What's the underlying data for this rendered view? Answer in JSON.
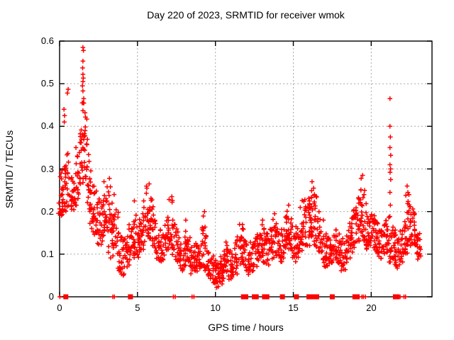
{
  "chart_data": {
    "type": "scatter",
    "title": "Day 220 of 2023, SRMTID for receiver wmok",
    "xlabel": "GPS time / hours",
    "ylabel": "SRMTID / TECUs",
    "xlim": [
      0,
      23.9
    ],
    "ylim": [
      0,
      0.6
    ],
    "xtick_values": [
      0,
      5,
      10,
      15,
      20
    ],
    "xtick_labels": [
      "0",
      "5",
      "10",
      "15",
      "20"
    ],
    "ytick_values": [
      0,
      0.1,
      0.2,
      0.3,
      0.4,
      0.5,
      0.6
    ],
    "ytick_labels": [
      "0",
      "0.1",
      "0.2",
      "0.3",
      "0.4",
      "0.5",
      "0.6"
    ],
    "grid": true,
    "legend": "none",
    "marker": "plus",
    "series_color": "#ff0000",
    "grid_color": "#a8a8a8",
    "density_bands": [
      [
        0.05,
        0.18,
        0.28,
        10
      ],
      [
        0.15,
        0.19,
        0.31,
        12
      ],
      [
        0.3,
        0.2,
        0.33,
        12
      ],
      [
        0.45,
        0.27,
        0.34,
        9
      ],
      [
        0.6,
        0.21,
        0.3,
        9
      ],
      [
        0.75,
        0.2,
        0.28,
        10
      ],
      [
        0.9,
        0.19,
        0.27,
        10
      ],
      [
        1.05,
        0.21,
        0.3,
        10
      ],
      [
        1.2,
        0.23,
        0.34,
        11
      ],
      [
        1.35,
        0.26,
        0.42,
        13
      ],
      [
        1.5,
        0.3,
        0.47,
        15
      ],
      [
        1.65,
        0.28,
        0.43,
        14
      ],
      [
        1.8,
        0.24,
        0.37,
        12
      ],
      [
        1.95,
        0.2,
        0.32,
        12
      ],
      [
        2.1,
        0.17,
        0.28,
        12
      ],
      [
        2.25,
        0.15,
        0.25,
        11
      ],
      [
        2.4,
        0.13,
        0.23,
        10
      ],
      [
        2.55,
        0.12,
        0.21,
        10
      ],
      [
        2.7,
        0.13,
        0.23,
        10
      ],
      [
        2.85,
        0.14,
        0.26,
        12
      ],
      [
        3.0,
        0.13,
        0.25,
        11
      ],
      [
        3.15,
        0.11,
        0.27,
        11
      ],
      [
        3.3,
        0.1,
        0.22,
        10
      ],
      [
        3.45,
        0.09,
        0.19,
        10
      ],
      [
        3.6,
        0.1,
        0.21,
        10
      ],
      [
        3.75,
        0.08,
        0.18,
        10
      ],
      [
        3.9,
        0.06,
        0.15,
        10
      ],
      [
        4.05,
        0.05,
        0.13,
        10
      ],
      [
        4.2,
        0.06,
        0.14,
        10
      ],
      [
        4.35,
        0.07,
        0.16,
        10
      ],
      [
        4.5,
        0.08,
        0.17,
        10
      ],
      [
        4.65,
        0.09,
        0.19,
        10
      ],
      [
        4.8,
        0.1,
        0.22,
        11
      ],
      [
        4.95,
        0.09,
        0.18,
        10
      ],
      [
        5.1,
        0.09,
        0.17,
        10
      ],
      [
        5.25,
        0.1,
        0.19,
        10
      ],
      [
        5.4,
        0.11,
        0.21,
        10
      ],
      [
        5.55,
        0.12,
        0.23,
        11
      ],
      [
        5.7,
        0.13,
        0.26,
        12
      ],
      [
        5.85,
        0.13,
        0.25,
        12
      ],
      [
        6.0,
        0.11,
        0.22,
        10
      ],
      [
        6.15,
        0.1,
        0.19,
        10
      ],
      [
        6.3,
        0.09,
        0.17,
        10
      ],
      [
        6.45,
        0.08,
        0.16,
        10
      ],
      [
        6.6,
        0.08,
        0.15,
        10
      ],
      [
        6.75,
        0.09,
        0.17,
        10
      ],
      [
        6.9,
        0.1,
        0.18,
        10
      ],
      [
        7.05,
        0.1,
        0.2,
        11
      ],
      [
        7.2,
        0.11,
        0.23,
        11
      ],
      [
        7.35,
        0.09,
        0.18,
        10
      ],
      [
        7.5,
        0.08,
        0.16,
        10
      ],
      [
        7.65,
        0.07,
        0.14,
        10
      ],
      [
        7.8,
        0.06,
        0.13,
        10
      ],
      [
        7.95,
        0.07,
        0.15,
        11
      ],
      [
        8.1,
        0.08,
        0.17,
        11
      ],
      [
        8.25,
        0.07,
        0.14,
        10
      ],
      [
        8.4,
        0.06,
        0.12,
        10
      ],
      [
        8.55,
        0.05,
        0.11,
        10
      ],
      [
        8.7,
        0.05,
        0.12,
        10
      ],
      [
        8.85,
        0.06,
        0.13,
        10
      ],
      [
        9.0,
        0.06,
        0.14,
        10
      ],
      [
        9.15,
        0.07,
        0.17,
        11
      ],
      [
        9.3,
        0.08,
        0.19,
        11
      ],
      [
        9.45,
        0.06,
        0.14,
        10
      ],
      [
        9.6,
        0.05,
        0.12,
        10
      ],
      [
        9.75,
        0.04,
        0.1,
        10
      ],
      [
        9.9,
        0.03,
        0.09,
        11
      ],
      [
        10.05,
        0.03,
        0.08,
        11
      ],
      [
        10.2,
        0.02,
        0.08,
        12
      ],
      [
        10.35,
        0.03,
        0.09,
        12
      ],
      [
        10.5,
        0.03,
        0.1,
        12
      ],
      [
        10.65,
        0.04,
        0.11,
        11
      ],
      [
        10.8,
        0.05,
        0.13,
        11
      ],
      [
        10.95,
        0.04,
        0.12,
        10
      ],
      [
        11.1,
        0.04,
        0.11,
        10
      ],
      [
        11.25,
        0.05,
        0.12,
        10
      ],
      [
        11.4,
        0.06,
        0.14,
        11
      ],
      [
        11.55,
        0.07,
        0.16,
        11
      ],
      [
        11.7,
        0.08,
        0.17,
        10
      ],
      [
        11.85,
        0.07,
        0.15,
        10
      ],
      [
        12.0,
        0.06,
        0.13,
        10
      ],
      [
        12.15,
        0.05,
        0.12,
        10
      ],
      [
        12.3,
        0.06,
        0.13,
        10
      ],
      [
        12.45,
        0.07,
        0.14,
        10
      ],
      [
        12.6,
        0.07,
        0.15,
        10
      ],
      [
        12.75,
        0.08,
        0.16,
        10
      ],
      [
        12.9,
        0.08,
        0.17,
        10
      ],
      [
        13.05,
        0.09,
        0.18,
        11
      ],
      [
        13.2,
        0.08,
        0.16,
        10
      ],
      [
        13.35,
        0.07,
        0.15,
        10
      ],
      [
        13.5,
        0.08,
        0.16,
        10
      ],
      [
        13.65,
        0.09,
        0.17,
        10
      ],
      [
        13.8,
        0.1,
        0.19,
        11
      ],
      [
        13.95,
        0.09,
        0.17,
        10
      ],
      [
        14.1,
        0.08,
        0.15,
        10
      ],
      [
        14.25,
        0.08,
        0.16,
        10
      ],
      [
        14.4,
        0.09,
        0.17,
        10
      ],
      [
        14.55,
        0.1,
        0.19,
        11
      ],
      [
        14.7,
        0.11,
        0.21,
        11
      ],
      [
        14.85,
        0.1,
        0.19,
        10
      ],
      [
        15.0,
        0.09,
        0.17,
        10
      ],
      [
        15.15,
        0.08,
        0.16,
        10
      ],
      [
        15.3,
        0.09,
        0.17,
        10
      ],
      [
        15.45,
        0.1,
        0.19,
        11
      ],
      [
        15.6,
        0.11,
        0.21,
        11
      ],
      [
        15.75,
        0.12,
        0.23,
        11
      ],
      [
        15.9,
        0.13,
        0.25,
        12
      ],
      [
        16.05,
        0.12,
        0.24,
        12
      ],
      [
        16.2,
        0.13,
        0.26,
        13
      ],
      [
        16.35,
        0.12,
        0.25,
        13
      ],
      [
        16.5,
        0.11,
        0.22,
        11
      ],
      [
        16.65,
        0.1,
        0.2,
        10
      ],
      [
        16.8,
        0.09,
        0.18,
        10
      ],
      [
        16.95,
        0.08,
        0.16,
        10
      ],
      [
        17.1,
        0.07,
        0.15,
        10
      ],
      [
        17.25,
        0.07,
        0.14,
        10
      ],
      [
        17.4,
        0.08,
        0.15,
        10
      ],
      [
        17.55,
        0.08,
        0.16,
        10
      ],
      [
        17.7,
        0.09,
        0.17,
        10
      ],
      [
        17.85,
        0.08,
        0.15,
        10
      ],
      [
        18.0,
        0.07,
        0.14,
        10
      ],
      [
        18.15,
        0.06,
        0.13,
        10
      ],
      [
        18.3,
        0.07,
        0.14,
        10
      ],
      [
        18.45,
        0.08,
        0.16,
        10
      ],
      [
        18.6,
        0.09,
        0.18,
        10
      ],
      [
        18.75,
        0.1,
        0.19,
        10
      ],
      [
        18.9,
        0.11,
        0.21,
        11
      ],
      [
        19.05,
        0.12,
        0.22,
        11
      ],
      [
        19.2,
        0.13,
        0.24,
        12
      ],
      [
        19.35,
        0.14,
        0.26,
        13
      ],
      [
        19.5,
        0.13,
        0.25,
        13
      ],
      [
        19.65,
        0.12,
        0.22,
        11
      ],
      [
        19.8,
        0.11,
        0.2,
        11
      ],
      [
        19.95,
        0.12,
        0.21,
        11
      ],
      [
        20.1,
        0.11,
        0.2,
        11
      ],
      [
        20.25,
        0.1,
        0.19,
        10
      ],
      [
        20.4,
        0.1,
        0.18,
        10
      ],
      [
        20.55,
        0.09,
        0.17,
        10
      ],
      [
        20.7,
        0.1,
        0.18,
        10
      ],
      [
        20.85,
        0.11,
        0.19,
        11
      ],
      [
        21.0,
        0.1,
        0.18,
        10
      ],
      [
        21.15,
        0.09,
        0.17,
        10
      ],
      [
        21.3,
        0.08,
        0.19,
        13
      ],
      [
        21.45,
        0.08,
        0.16,
        10
      ],
      [
        21.6,
        0.07,
        0.15,
        10
      ],
      [
        21.75,
        0.06,
        0.14,
        10
      ],
      [
        21.9,
        0.08,
        0.16,
        10
      ],
      [
        22.05,
        0.09,
        0.17,
        10
      ],
      [
        22.2,
        0.1,
        0.2,
        11
      ],
      [
        22.35,
        0.12,
        0.24,
        13
      ],
      [
        22.5,
        0.11,
        0.22,
        11
      ],
      [
        22.65,
        0.12,
        0.21,
        11
      ],
      [
        22.8,
        0.12,
        0.2,
        11
      ],
      [
        22.95,
        0.1,
        0.18,
        11
      ],
      [
        23.1,
        0.08,
        0.15,
        9
      ]
    ],
    "points": [
      [
        0.28,
        0.44
      ],
      [
        0.3,
        0.41
      ],
      [
        0.32,
        0.425
      ],
      [
        0.5,
        0.478
      ],
      [
        0.55,
        0.487
      ],
      [
        1.5,
        0.585
      ],
      [
        1.53,
        0.578
      ],
      [
        1.5,
        0.553
      ],
      [
        1.48,
        0.537
      ],
      [
        1.5,
        0.522
      ],
      [
        1.52,
        0.513
      ],
      [
        1.5,
        0.505
      ],
      [
        1.47,
        0.495
      ],
      [
        1.5,
        0.483
      ],
      [
        1.55,
        0.465
      ],
      [
        1.45,
        0.455
      ],
      [
        1.05,
        0.35
      ],
      [
        2.85,
        0.27
      ],
      [
        3.2,
        0.278
      ],
      [
        3.5,
        0.24
      ],
      [
        4.8,
        0.225
      ],
      [
        5.6,
        0.255
      ],
      [
        5.75,
        0.265
      ],
      [
        7.2,
        0.235
      ],
      [
        8.1,
        0.18
      ],
      [
        9.3,
        0.2
      ],
      [
        11.55,
        0.17
      ],
      [
        13.8,
        0.195
      ],
      [
        14.7,
        0.215
      ],
      [
        16.2,
        0.27
      ],
      [
        16.3,
        0.255
      ],
      [
        19.35,
        0.278
      ],
      [
        19.45,
        0.285
      ],
      [
        21.2,
        0.465
      ],
      [
        21.2,
        0.4
      ],
      [
        21.23,
        0.375
      ],
      [
        21.2,
        0.35
      ],
      [
        21.25,
        0.332
      ],
      [
        21.2,
        0.31
      ],
      [
        21.24,
        0.3
      ],
      [
        21.21,
        0.292
      ],
      [
        21.25,
        0.275
      ],
      [
        21.2,
        0.245
      ],
      [
        21.23,
        0.215
      ],
      [
        22.3,
        0.26
      ],
      [
        22.35,
        0.245
      ]
    ],
    "zero_line_squares": [
      0.4,
      4.55,
      11.8,
      11.95,
      12.5,
      12.62,
      13.15,
      13.3,
      14.3,
      15.2,
      16.0,
      16.12,
      16.4,
      16.5,
      17.5,
      18.95,
      19.1,
      21.55,
      21.65
    ],
    "zero_line_pluses": [
      0.02,
      3.42,
      3.52,
      7.3,
      7.42,
      8.5,
      8.62,
      16.2,
      19.4,
      19.5,
      19.62,
      21.75,
      21.85,
      22.1,
      22.2
    ]
  }
}
